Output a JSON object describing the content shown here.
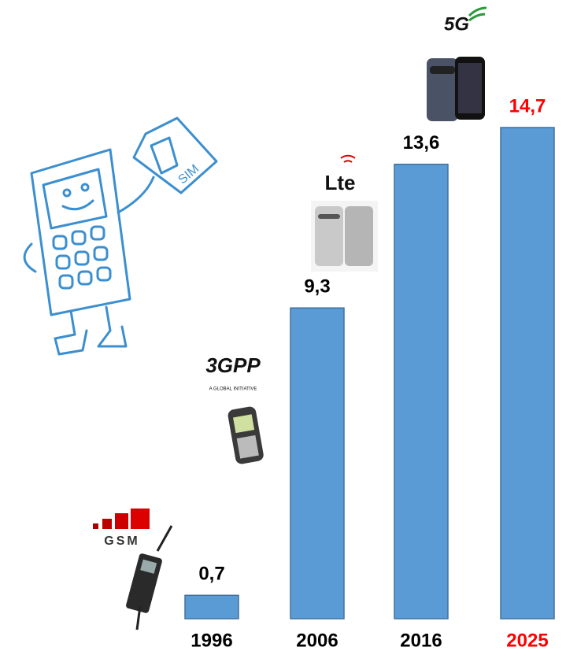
{
  "chart_data": {
    "type": "bar",
    "categories": [
      "1996",
      "2006",
      "2016",
      "2025"
    ],
    "values": [
      0.7,
      9.3,
      13.6,
      14.7
    ],
    "value_labels": [
      "0,7",
      "9,3",
      "13,6",
      "14,7"
    ],
    "color": "#5b9bd5",
    "label_colors": [
      "#000000",
      "#000000",
      "#000000",
      "#ff0000"
    ],
    "annotations": [
      "GSM",
      "3GPP",
      "A GLOBAL INITIATIVE",
      "Lte",
      "5G",
      "SIM"
    ]
  }
}
